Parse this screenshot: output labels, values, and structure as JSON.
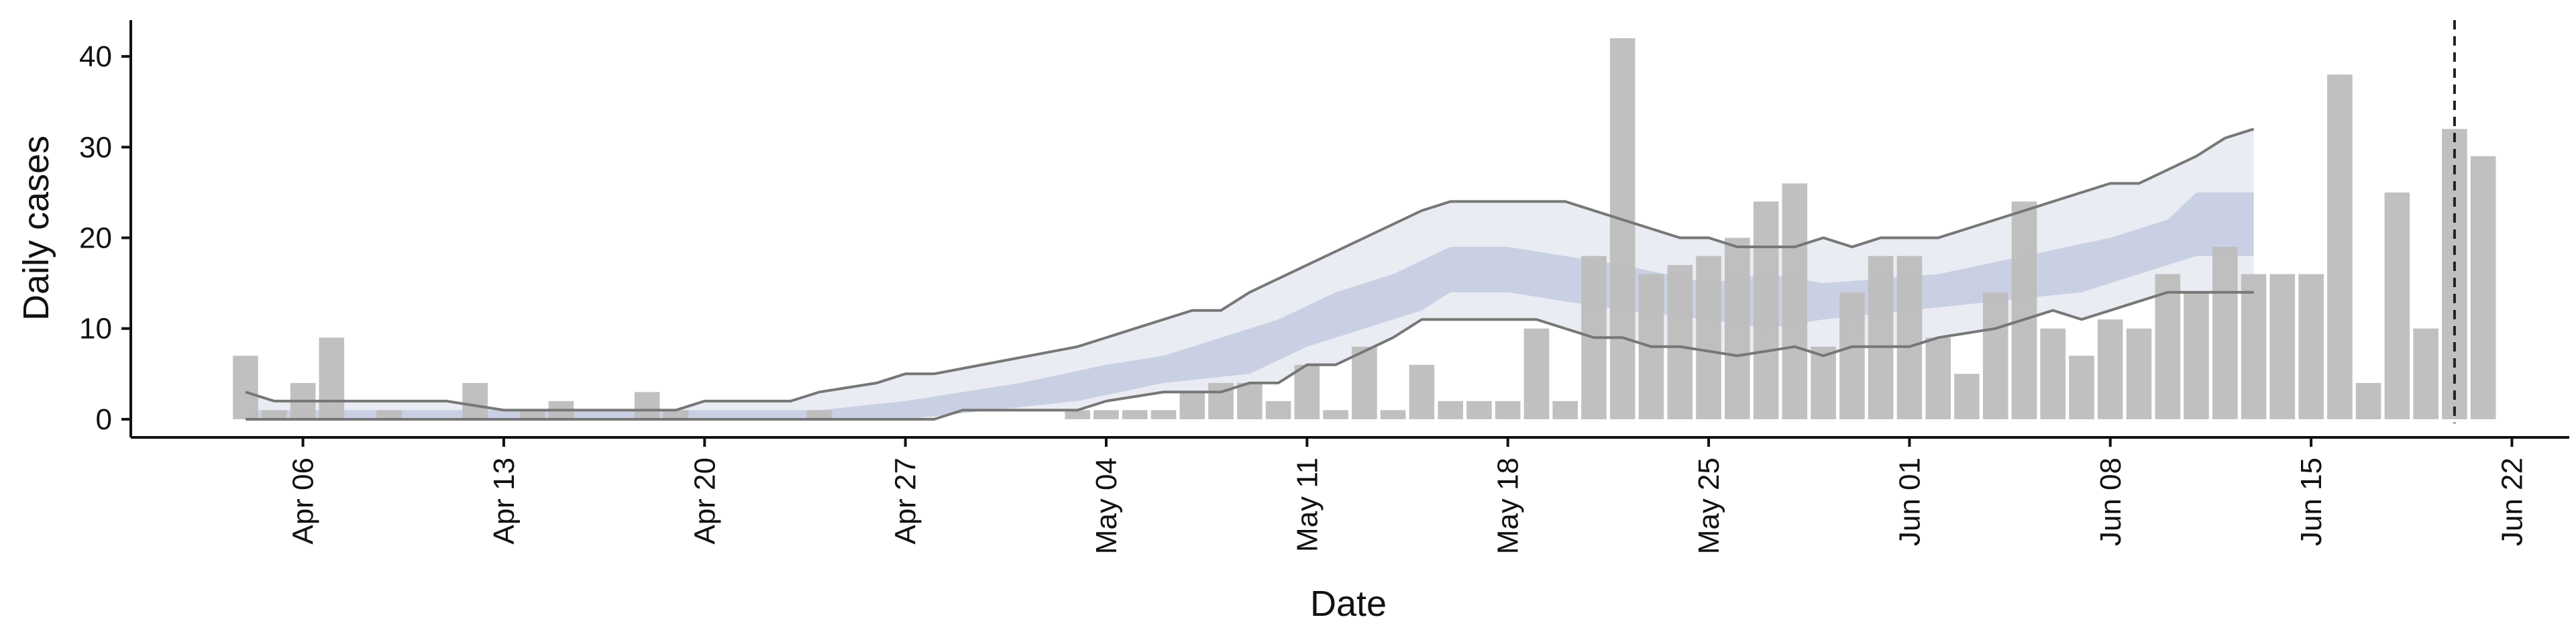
{
  "chart_data": {
    "type": "bar",
    "xlabel": "Date",
    "ylabel": "Daily cases",
    "ylim": [
      -2,
      44
    ],
    "y_ticks": [
      0,
      10,
      20,
      30,
      40
    ],
    "x_ticks": [
      {
        "date": "2020-04-06",
        "label": "Apr 06"
      },
      {
        "date": "2020-04-13",
        "label": "Apr 13"
      },
      {
        "date": "2020-04-20",
        "label": "Apr 20"
      },
      {
        "date": "2020-04-27",
        "label": "Apr 27"
      },
      {
        "date": "2020-05-04",
        "label": "May 04"
      },
      {
        "date": "2020-05-11",
        "label": "May 11"
      },
      {
        "date": "2020-05-18",
        "label": "May 18"
      },
      {
        "date": "2020-05-25",
        "label": "May 25"
      },
      {
        "date": "2020-06-01",
        "label": "Jun 01"
      },
      {
        "date": "2020-06-08",
        "label": "Jun 08"
      },
      {
        "date": "2020-06-15",
        "label": "Jun 15"
      },
      {
        "date": "2020-06-22",
        "label": "Jun 22"
      }
    ],
    "x_range": [
      "2020-03-31",
      "2020-06-24"
    ],
    "vline_date": "2020-06-20",
    "grid": false,
    "legend": "none",
    "colors": {
      "bars": "#bdbdbd",
      "band_outer": "#e8eaf2",
      "band_inner": "#c4cbe0",
      "line_bounds": "#777777",
      "vline": "#222222",
      "axis": "#111111"
    },
    "bars": [
      {
        "date": "2020-04-04",
        "cases": 7
      },
      {
        "date": "2020-04-05",
        "cases": 1
      },
      {
        "date": "2020-04-06",
        "cases": 4
      },
      {
        "date": "2020-04-07",
        "cases": 9
      },
      {
        "date": "2020-04-08",
        "cases": 0
      },
      {
        "date": "2020-04-09",
        "cases": 1
      },
      {
        "date": "2020-04-10",
        "cases": 0
      },
      {
        "date": "2020-04-11",
        "cases": 0
      },
      {
        "date": "2020-04-12",
        "cases": 4
      },
      {
        "date": "2020-04-13",
        "cases": 0
      },
      {
        "date": "2020-04-14",
        "cases": 1
      },
      {
        "date": "2020-04-15",
        "cases": 2
      },
      {
        "date": "2020-04-16",
        "cases": 0
      },
      {
        "date": "2020-04-17",
        "cases": 0
      },
      {
        "date": "2020-04-18",
        "cases": 3
      },
      {
        "date": "2020-04-19",
        "cases": 1
      },
      {
        "date": "2020-04-20",
        "cases": 0
      },
      {
        "date": "2020-04-21",
        "cases": 0
      },
      {
        "date": "2020-04-22",
        "cases": 0
      },
      {
        "date": "2020-04-23",
        "cases": 0
      },
      {
        "date": "2020-04-24",
        "cases": 1
      },
      {
        "date": "2020-04-25",
        "cases": 0
      },
      {
        "date": "2020-04-26",
        "cases": 0
      },
      {
        "date": "2020-04-27",
        "cases": 0
      },
      {
        "date": "2020-04-28",
        "cases": 0
      },
      {
        "date": "2020-04-29",
        "cases": 0
      },
      {
        "date": "2020-04-30",
        "cases": 0
      },
      {
        "date": "2020-05-01",
        "cases": 0
      },
      {
        "date": "2020-05-02",
        "cases": 0
      },
      {
        "date": "2020-05-03",
        "cases": 1
      },
      {
        "date": "2020-05-04",
        "cases": 1
      },
      {
        "date": "2020-05-05",
        "cases": 1
      },
      {
        "date": "2020-05-06",
        "cases": 1
      },
      {
        "date": "2020-05-07",
        "cases": 3
      },
      {
        "date": "2020-05-08",
        "cases": 4
      },
      {
        "date": "2020-05-09",
        "cases": 4
      },
      {
        "date": "2020-05-10",
        "cases": 2
      },
      {
        "date": "2020-05-11",
        "cases": 6
      },
      {
        "date": "2020-05-12",
        "cases": 1
      },
      {
        "date": "2020-05-13",
        "cases": 8
      },
      {
        "date": "2020-05-14",
        "cases": 1
      },
      {
        "date": "2020-05-15",
        "cases": 6
      },
      {
        "date": "2020-05-16",
        "cases": 2
      },
      {
        "date": "2020-05-17",
        "cases": 2
      },
      {
        "date": "2020-05-18",
        "cases": 2
      },
      {
        "date": "2020-05-19",
        "cases": 10
      },
      {
        "date": "2020-05-20",
        "cases": 2
      },
      {
        "date": "2020-05-21",
        "cases": 18
      },
      {
        "date": "2020-05-22",
        "cases": 42
      },
      {
        "date": "2020-05-23",
        "cases": 16
      },
      {
        "date": "2020-05-24",
        "cases": 17
      },
      {
        "date": "2020-05-25",
        "cases": 18
      },
      {
        "date": "2020-05-26",
        "cases": 20
      },
      {
        "date": "2020-05-27",
        "cases": 24
      },
      {
        "date": "2020-05-28",
        "cases": 26
      },
      {
        "date": "2020-05-29",
        "cases": 8
      },
      {
        "date": "2020-05-30",
        "cases": 14
      },
      {
        "date": "2020-05-31",
        "cases": 18
      },
      {
        "date": "2020-06-01",
        "cases": 18
      },
      {
        "date": "2020-06-02",
        "cases": 9
      },
      {
        "date": "2020-06-03",
        "cases": 5
      },
      {
        "date": "2020-06-04",
        "cases": 14
      },
      {
        "date": "2020-06-05",
        "cases": 24
      },
      {
        "date": "2020-06-06",
        "cases": 10
      },
      {
        "date": "2020-06-07",
        "cases": 7
      },
      {
        "date": "2020-06-08",
        "cases": 11
      },
      {
        "date": "2020-06-09",
        "cases": 10
      },
      {
        "date": "2020-06-10",
        "cases": 16
      },
      {
        "date": "2020-06-11",
        "cases": 14
      },
      {
        "date": "2020-06-12",
        "cases": 19
      },
      {
        "date": "2020-06-13",
        "cases": 16
      },
      {
        "date": "2020-06-14",
        "cases": 16
      },
      {
        "date": "2020-06-15",
        "cases": 16
      },
      {
        "date": "2020-06-16",
        "cases": 38
      },
      {
        "date": "2020-06-17",
        "cases": 4
      },
      {
        "date": "2020-06-18",
        "cases": 25
      },
      {
        "date": "2020-06-19",
        "cases": 10
      },
      {
        "date": "2020-06-20",
        "cases": 32
      },
      {
        "date": "2020-06-21",
        "cases": 29
      }
    ],
    "band_outer_upper": [
      [
        "2020-04-04",
        3
      ],
      [
        "2020-04-05",
        2
      ],
      [
        "2020-04-11",
        2
      ],
      [
        "2020-04-13",
        1
      ],
      [
        "2020-04-19",
        1
      ],
      [
        "2020-04-20",
        2
      ],
      [
        "2020-04-23",
        2
      ],
      [
        "2020-04-24",
        3
      ],
      [
        "2020-04-26",
        4
      ],
      [
        "2020-04-27",
        5
      ],
      [
        "2020-04-28",
        5
      ],
      [
        "2020-05-03",
        8
      ],
      [
        "2020-05-05",
        10
      ],
      [
        "2020-05-07",
        12
      ],
      [
        "2020-05-08",
        12
      ],
      [
        "2020-05-09",
        14
      ],
      [
        "2020-05-11",
        17
      ],
      [
        "2020-05-13",
        20
      ],
      [
        "2020-05-15",
        23
      ],
      [
        "2020-05-16",
        24
      ],
      [
        "2020-05-20",
        24
      ],
      [
        "2020-05-22",
        22
      ],
      [
        "2020-05-24",
        20
      ],
      [
        "2020-05-25",
        20
      ],
      [
        "2020-05-26",
        19
      ],
      [
        "2020-05-28",
        19
      ],
      [
        "2020-05-29",
        20
      ],
      [
        "2020-05-30",
        19
      ],
      [
        "2020-05-31",
        20
      ],
      [
        "2020-06-02",
        20
      ],
      [
        "2020-06-05",
        23
      ],
      [
        "2020-06-06",
        24
      ],
      [
        "2020-06-08",
        26
      ],
      [
        "2020-06-09",
        26
      ],
      [
        "2020-06-11",
        29
      ],
      [
        "2020-06-12",
        31
      ],
      [
        "2020-06-13",
        32
      ]
    ],
    "band_outer_lower": [
      [
        "2020-04-04",
        0
      ],
      [
        "2020-04-27",
        0
      ],
      [
        "2020-04-28",
        0
      ],
      [
        "2020-04-29",
        1
      ],
      [
        "2020-05-03",
        1
      ],
      [
        "2020-05-04",
        2
      ],
      [
        "2020-05-06",
        3
      ],
      [
        "2020-05-08",
        3
      ],
      [
        "2020-05-09",
        4
      ],
      [
        "2020-05-10",
        4
      ],
      [
        "2020-05-11",
        6
      ],
      [
        "2020-05-12",
        6
      ],
      [
        "2020-05-14",
        9
      ],
      [
        "2020-05-15",
        11
      ],
      [
        "2020-05-19",
        11
      ],
      [
        "2020-05-21",
        9
      ],
      [
        "2020-05-22",
        9
      ],
      [
        "2020-05-23",
        8
      ],
      [
        "2020-05-24",
        8
      ],
      [
        "2020-05-26",
        7
      ],
      [
        "2020-05-28",
        8
      ],
      [
        "2020-05-29",
        7
      ],
      [
        "2020-05-30",
        8
      ],
      [
        "2020-06-01",
        8
      ],
      [
        "2020-06-02",
        9
      ],
      [
        "2020-06-04",
        10
      ],
      [
        "2020-06-06",
        12
      ],
      [
        "2020-06-07",
        11
      ],
      [
        "2020-06-08",
        12
      ],
      [
        "2020-06-09",
        13
      ],
      [
        "2020-06-10",
        14
      ],
      [
        "2020-06-13",
        14
      ]
    ],
    "band_inner_upper": [
      [
        "2020-04-04",
        1
      ],
      [
        "2020-04-11",
        1
      ],
      [
        "2020-04-20",
        1
      ],
      [
        "2020-04-24",
        1
      ],
      [
        "2020-04-27",
        2
      ],
      [
        "2020-05-01",
        4
      ],
      [
        "2020-05-04",
        6
      ],
      [
        "2020-05-06",
        7
      ],
      [
        "2020-05-08",
        9
      ],
      [
        "2020-05-10",
        11
      ],
      [
        "2020-05-12",
        14
      ],
      [
        "2020-05-14",
        16
      ],
      [
        "2020-05-16",
        19
      ],
      [
        "2020-05-18",
        19
      ],
      [
        "2020-05-20",
        18
      ],
      [
        "2020-05-22",
        17
      ],
      [
        "2020-05-25",
        15
      ],
      [
        "2020-05-27",
        16
      ],
      [
        "2020-05-29",
        15
      ],
      [
        "2020-06-02",
        16
      ],
      [
        "2020-06-05",
        18
      ],
      [
        "2020-06-08",
        20
      ],
      [
        "2020-06-10",
        22
      ],
      [
        "2020-06-11",
        25
      ],
      [
        "2020-06-13",
        25
      ]
    ],
    "band_inner_lower": [
      [
        "2020-04-04",
        0
      ],
      [
        "2020-04-27",
        0
      ],
      [
        "2020-04-30",
        1
      ],
      [
        "2020-05-03",
        2
      ],
      [
        "2020-05-06",
        4
      ],
      [
        "2020-05-09",
        5
      ],
      [
        "2020-05-11",
        8
      ],
      [
        "2020-05-13",
        10
      ],
      [
        "2020-05-15",
        12
      ],
      [
        "2020-05-16",
        14
      ],
      [
        "2020-05-18",
        14
      ],
      [
        "2020-05-20",
        13
      ],
      [
        "2020-05-22",
        12
      ],
      [
        "2020-05-25",
        11
      ],
      [
        "2020-05-27",
        10
      ],
      [
        "2020-05-29",
        11
      ],
      [
        "2020-06-01",
        12
      ],
      [
        "2020-06-04",
        13
      ],
      [
        "2020-06-07",
        14
      ],
      [
        "2020-06-09",
        16
      ],
      [
        "2020-06-11",
        18
      ],
      [
        "2020-06-13",
        18
      ]
    ]
  }
}
